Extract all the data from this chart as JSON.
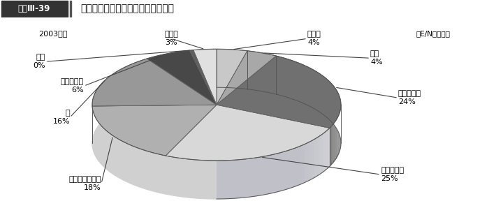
{
  "year_label": "2003年度",
  "base_label": "（E/Nベース）",
  "header_label": "図表Ⅲ-39",
  "header_title": "一般プロジェクト無償の分野別割合",
  "segments": [
    {
      "label": "その他",
      "pct": 4,
      "top_color": "#c8c8c8",
      "side_color": "#b0b0b0"
    },
    {
      "label": "環境",
      "pct": 4,
      "top_color": "#a8a8a8",
      "side_color": "#909090"
    },
    {
      "label": "通信・運輸",
      "pct": 24,
      "top_color": "#707070",
      "side_color": "#585858"
    },
    {
      "label": "保健・医療",
      "pct": 25,
      "top_color": "#d8d8d8",
      "side_color": "#c0c0c8"
    },
    {
      "label": "教育・人づくり",
      "pct": 18,
      "top_color": "#b0b0b0",
      "side_color": "#989898"
    },
    {
      "label": "水",
      "pct": 16,
      "top_color": "#989898",
      "side_color": "#808080"
    },
    {
      "label": "エネルギー",
      "pct": 6,
      "top_color": "#484848",
      "side_color": "#383838"
    },
    {
      "label": "地雷",
      "pct": 0.5,
      "top_color": "#606060",
      "side_color": "#505050"
    },
    {
      "label": "農林業",
      "pct": 3,
      "top_color": "#e0e0e0",
      "side_color": "#c8c8c8"
    }
  ]
}
